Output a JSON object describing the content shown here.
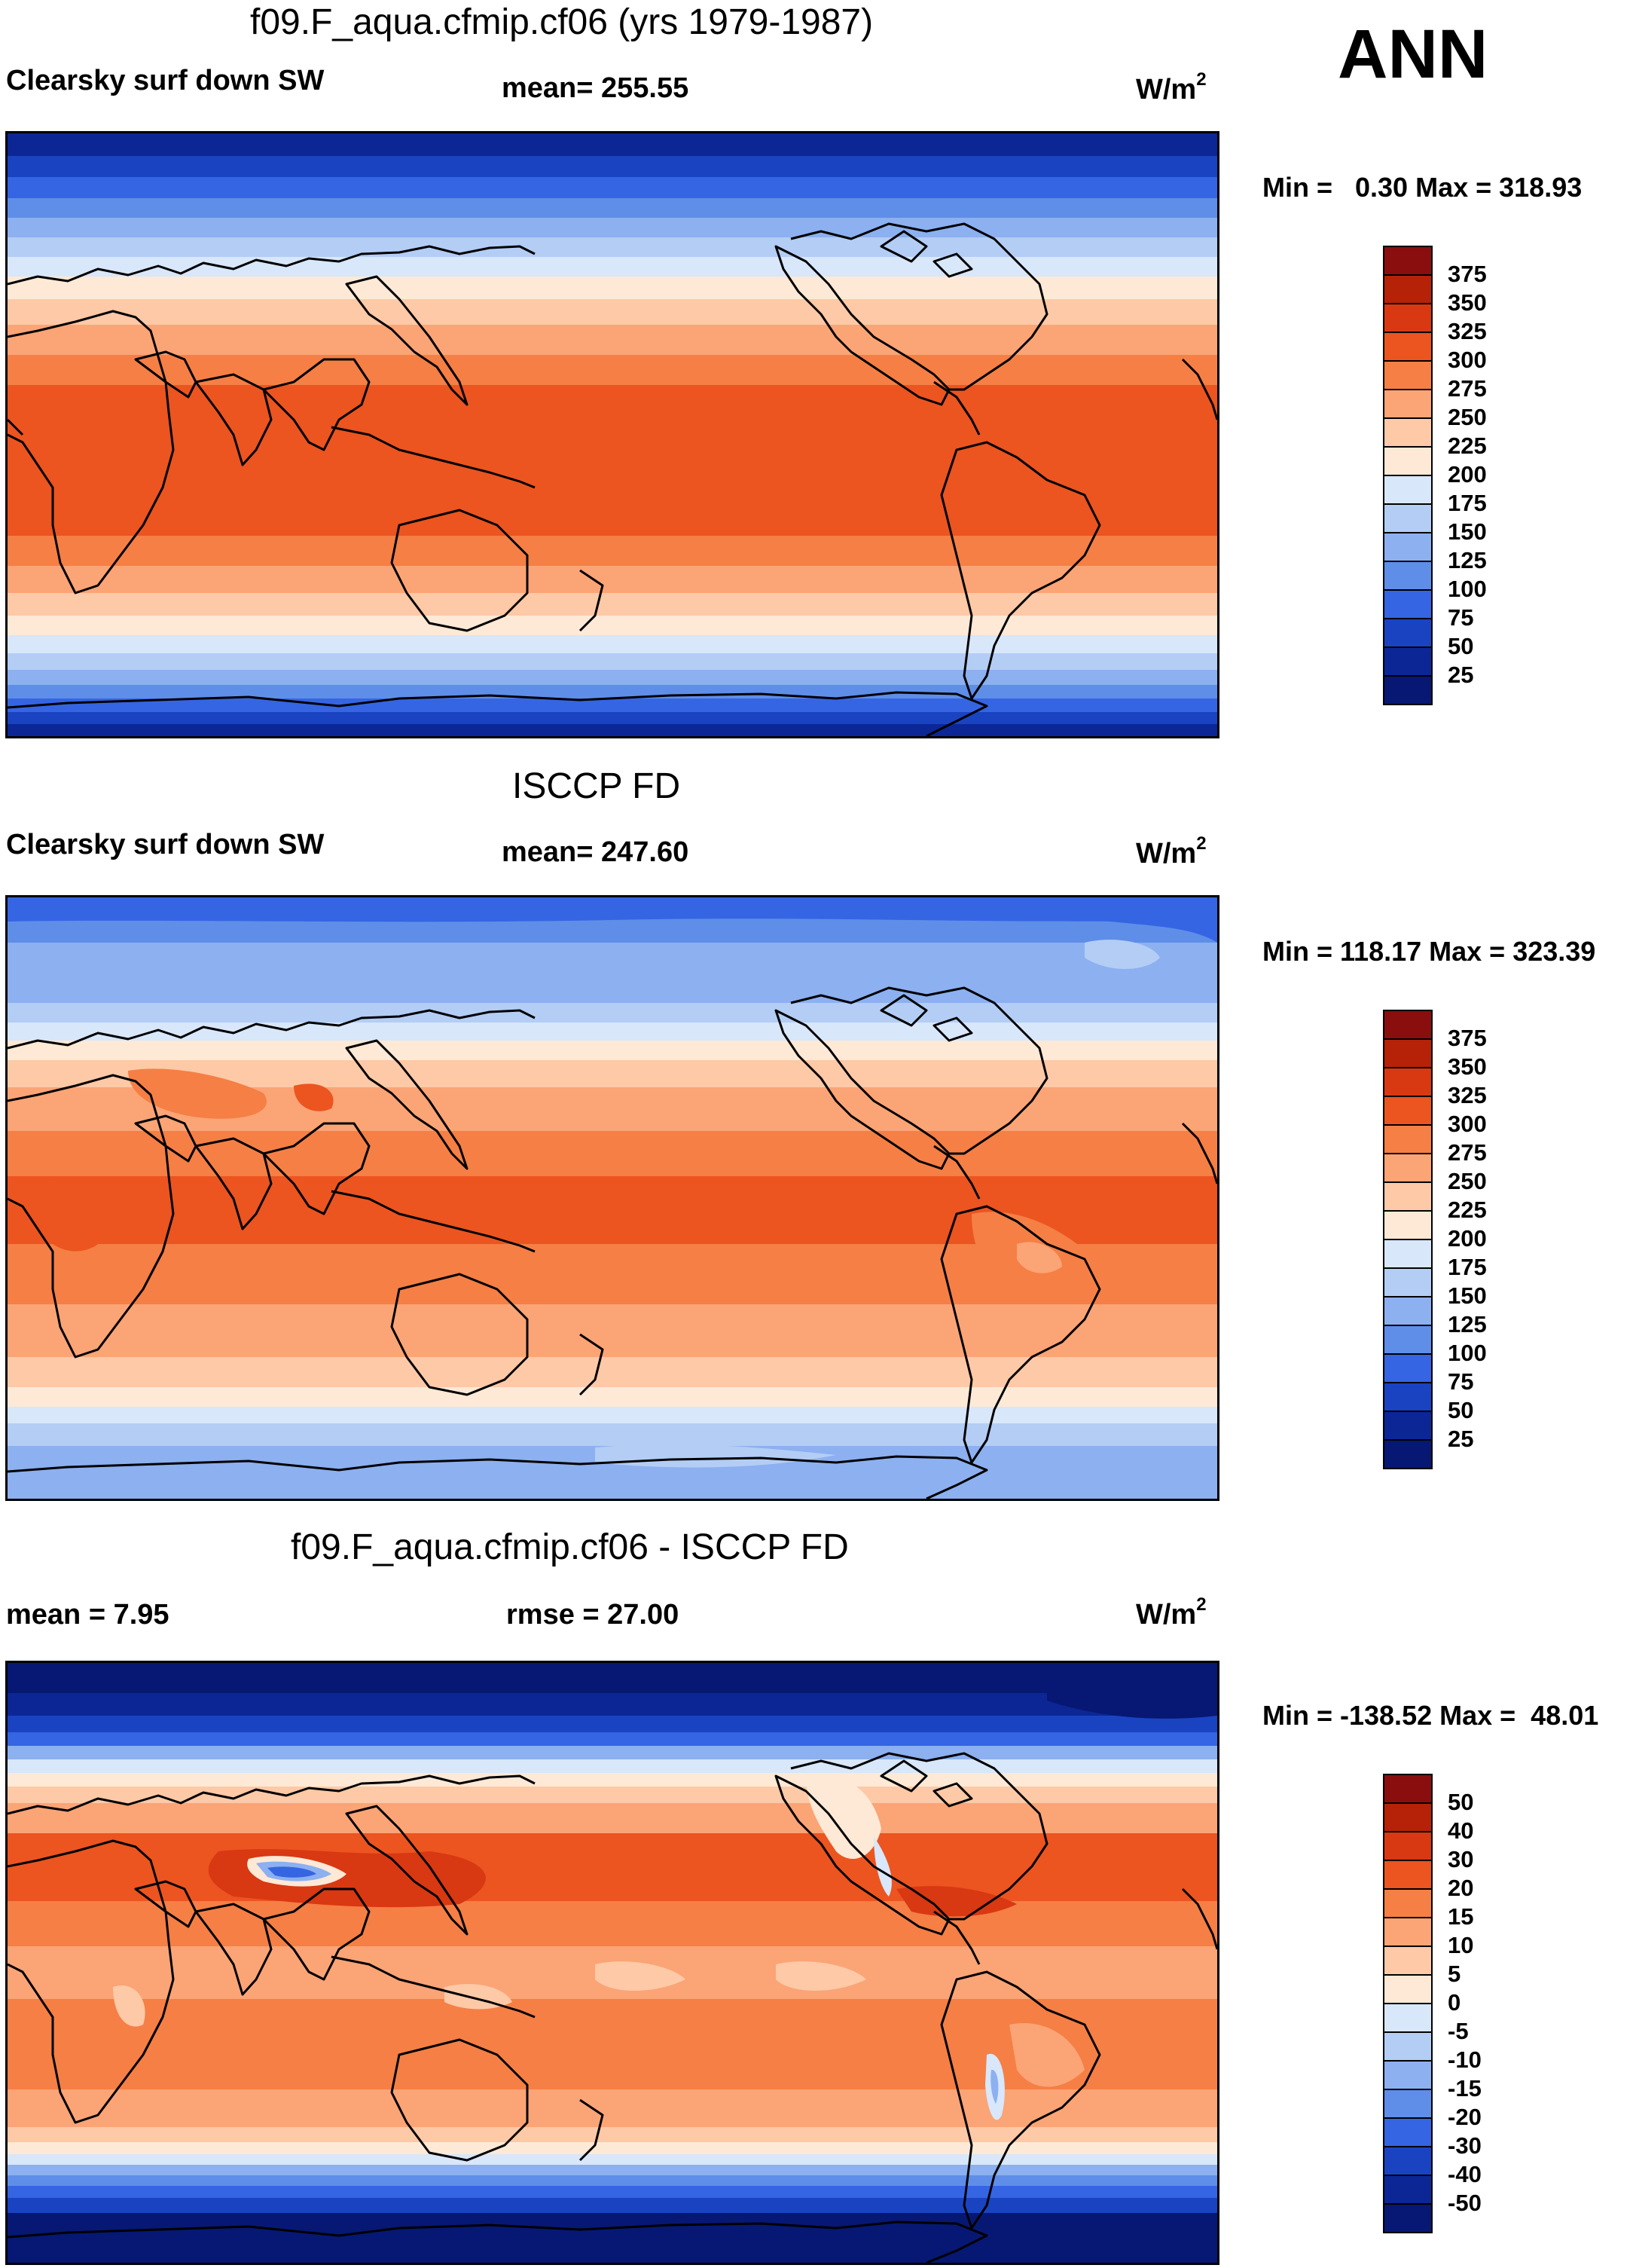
{
  "season": "ANN",
  "panels": [
    {
      "id": "model",
      "title": "f09.F_aqua.cfmip.cf06 (yrs 1979-1987)",
      "variable": "Clearsky surf down SW",
      "stat1": "mean= 255.55",
      "stat2": "",
      "units": "W/m",
      "units_sup": "2",
      "minmax": "Min =   0.30 Max = 318.93",
      "scheme": "abs",
      "colorbar_labels": [
        "375",
        "350",
        "325",
        "300",
        "275",
        "250",
        "225",
        "200",
        "175",
        "150",
        "125",
        "100",
        "75",
        "50",
        "25"
      ]
    },
    {
      "id": "obs",
      "title": "ISCCP FD",
      "variable": "Clearsky surf down SW",
      "stat1": "mean= 247.60",
      "stat2": "",
      "units": "W/m",
      "units_sup": "2",
      "minmax": "Min = 118.17 Max = 323.39",
      "scheme": "abs",
      "colorbar_labels": [
        "375",
        "350",
        "325",
        "300",
        "275",
        "250",
        "225",
        "200",
        "175",
        "150",
        "125",
        "100",
        "75",
        "50",
        "25"
      ]
    },
    {
      "id": "diff",
      "title": "f09.F_aqua.cfmip.cf06 - ISCCP FD",
      "variable": "",
      "stat1": "mean =   7.95",
      "stat2": "rmse =  27.00",
      "units": "W/m",
      "units_sup": "2",
      "minmax": "Min = -138.52 Max =  48.01",
      "scheme": "diff",
      "colorbar_labels": [
        "50",
        "40",
        "30",
        "20",
        "15",
        "10",
        "5",
        "0",
        "-5",
        "-10",
        "-15",
        "-20",
        "-30",
        "-40",
        "-50"
      ]
    }
  ],
  "colors": {
    "abs": [
      "#8a0e0e",
      "#b52208",
      "#d83812",
      "#ec5420",
      "#f57f45",
      "#fba476",
      "#fdc9a7",
      "#fde9d6",
      "#d8e7fa",
      "#b3cdf5",
      "#8cb0f0",
      "#5f8ee8",
      "#3565e3",
      "#1a43c2",
      "#0c2696",
      "#061873"
    ],
    "diff": [
      "#8a0e0e",
      "#b52208",
      "#d83812",
      "#ec5420",
      "#f57f45",
      "#fba476",
      "#fdc9a7",
      "#fde9d6",
      "#d8e7fa",
      "#b3cdf5",
      "#8cb0f0",
      "#5f8ee8",
      "#3565e3",
      "#1a43c2",
      "#0c2696",
      "#061873"
    ]
  }
}
